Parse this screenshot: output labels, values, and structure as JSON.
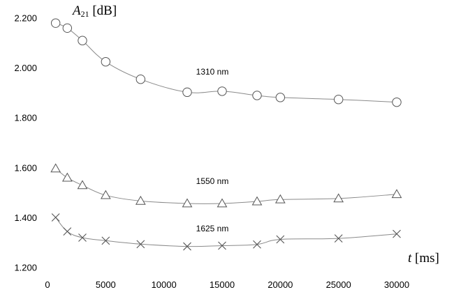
{
  "chart_data": {
    "type": "line",
    "xlim": [
      0,
      30000
    ],
    "ylim": [
      1.2,
      2.2
    ],
    "x_ticks": [
      "0",
      "5000",
      "10000",
      "15000",
      "20000",
      "25000",
      "30000"
    ],
    "y_ticks": [
      "1.200",
      "1.400",
      "1.600",
      "1.800",
      "2.000",
      "2.200"
    ],
    "ylabel": {
      "symbol": "A",
      "subscript": "21",
      "unit": " [dB]"
    },
    "xlabel": {
      "symbol": "t",
      "unit": " [ms]"
    },
    "grid": false,
    "series": [
      {
        "name": "1310  nm",
        "marker": "circle",
        "x": [
          700,
          1700,
          3000,
          5000,
          8000,
          12000,
          15000,
          18000,
          20000,
          25000,
          30000
        ],
        "y": [
          2.18,
          2.16,
          2.11,
          2.025,
          1.955,
          1.903,
          1.907,
          1.89,
          1.882,
          1.874,
          1.863
        ]
      },
      {
        "name": "1550  nm",
        "marker": "triangle",
        "x": [
          700,
          1700,
          3000,
          5000,
          8000,
          12000,
          15000,
          18000,
          20000,
          25000,
          30000
        ],
        "y": [
          1.597,
          1.56,
          1.53,
          1.49,
          1.467,
          1.457,
          1.457,
          1.465,
          1.473,
          1.477,
          1.494
        ]
      },
      {
        "name": "1625  nm",
        "marker": "cross",
        "x": [
          700,
          1700,
          3000,
          5000,
          8000,
          12000,
          15000,
          18000,
          20000,
          25000,
          30000
        ],
        "y": [
          1.401,
          1.345,
          1.32,
          1.308,
          1.294,
          1.285,
          1.288,
          1.293,
          1.313,
          1.317,
          1.335
        ]
      }
    ]
  }
}
